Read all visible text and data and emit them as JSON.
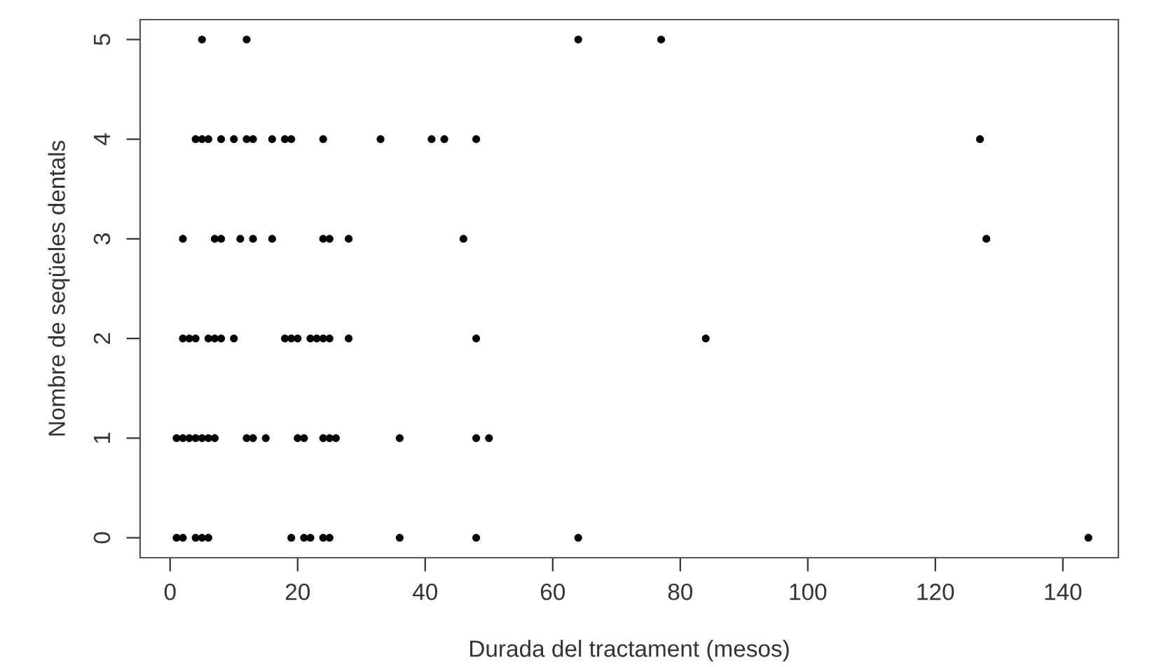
{
  "chart_data": {
    "type": "scatter",
    "xlabel": "Durada del tractament (mesos)",
    "ylabel": "Nombre de seqüeles dentals",
    "series": [
      {
        "color": "#000000",
        "x": [
          5,
          12,
          64,
          77,
          4,
          5,
          6,
          8,
          10,
          12,
          13,
          16,
          18,
          19,
          24,
          33,
          41,
          43,
          48,
          127,
          2,
          7,
          8,
          11,
          13,
          16,
          24,
          25,
          28,
          46,
          128,
          2,
          3,
          4,
          6,
          7,
          8,
          10,
          18,
          19,
          20,
          22,
          23,
          24,
          25,
          28,
          48,
          84,
          1,
          2,
          3,
          4,
          5,
          6,
          7,
          12,
          13,
          15,
          20,
          21,
          24,
          25,
          26,
          36,
          48,
          50,
          1,
          2,
          4,
          5,
          6,
          19,
          21,
          22,
          24,
          25,
          36,
          48,
          64,
          144
        ],
        "values": [
          5,
          5,
          5,
          5,
          4,
          4,
          4,
          4,
          4,
          4,
          4,
          4,
          4,
          4,
          4,
          4,
          4,
          4,
          4,
          4,
          3,
          3,
          3,
          3,
          3,
          3,
          3,
          3,
          3,
          3,
          3,
          2,
          2,
          2,
          2,
          2,
          2,
          2,
          2,
          2,
          2,
          2,
          2,
          2,
          2,
          2,
          2,
          2,
          1,
          1,
          1,
          1,
          1,
          1,
          1,
          1,
          1,
          1,
          1,
          1,
          1,
          1,
          1,
          1,
          1,
          1,
          0,
          0,
          0,
          0,
          0,
          0,
          0,
          0,
          0,
          0,
          0,
          0,
          0,
          0
        ]
      }
    ],
    "xlim": [
      -4.7,
      148.7
    ],
    "ylim": [
      -0.2,
      5.2
    ],
    "xticks": [
      0,
      20,
      40,
      60,
      80,
      100,
      120,
      140
    ],
    "yticks": [
      0,
      1,
      2,
      3,
      4,
      5
    ],
    "grid": false,
    "legend": false,
    "marker": "circle"
  }
}
